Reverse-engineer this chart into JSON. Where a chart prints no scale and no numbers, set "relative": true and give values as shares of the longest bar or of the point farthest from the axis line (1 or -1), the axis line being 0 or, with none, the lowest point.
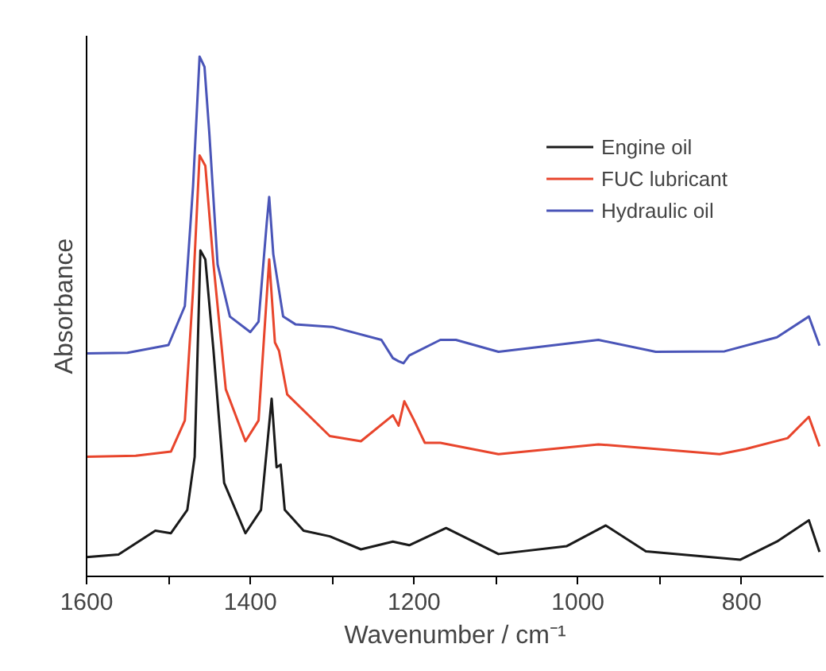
{
  "chart_data": {
    "type": "line",
    "relative": true,
    "xlabel": "Wavenumber / cm⁻¹",
    "ylabel": "Absorbance",
    "xlim": [
      1600,
      700
    ],
    "xticks": [
      1600,
      {
        "value": 1500,
        "label": null
      },
      1400,
      {
        "value": 1300,
        "label": null
      },
      1200,
      {
        "value": 1100,
        "label": null
      },
      1000,
      {
        "value": 900,
        "label": null
      },
      800
    ],
    "tick_labels": "x",
    "grid": false,
    "legend": "top right",
    "marker": "none",
    "line_style": "solid",
    "series": [
      {
        "name": "Engine oil",
        "color": "#1a1a1a",
        "x": [
          1600,
          1561,
          1516,
          1497,
          1477,
          1468,
          1461,
          1455,
          1445,
          1432,
          1406,
          1387,
          1374,
          1368,
          1363,
          1358,
          1335,
          1303,
          1265,
          1226,
          1206,
          1161,
          1097,
          1014,
          966,
          917,
          802,
          757,
          718,
          705
        ],
        "values": [
          0.037,
          0.042,
          0.088,
          0.083,
          0.128,
          0.23,
          0.627,
          0.61,
          0.434,
          0.18,
          0.083,
          0.128,
          0.342,
          0.21,
          0.215,
          0.128,
          0.088,
          0.077,
          0.052,
          0.067,
          0.06,
          0.093,
          0.043,
          0.058,
          0.098,
          0.048,
          0.032,
          0.067,
          0.108,
          0.047
        ]
      },
      {
        "name": "FUC lubricant",
        "color": "#e8452c",
        "x": [
          1600,
          1540,
          1497,
          1480,
          1470,
          1462,
          1455,
          1445,
          1430,
          1406,
          1390,
          1377,
          1370,
          1365,
          1355,
          1303,
          1265,
          1226,
          1219,
          1212,
          1200,
          1187,
          1168,
          1097,
          975,
          827,
          795,
          744,
          718,
          705
        ],
        "values": [
          0.23,
          0.232,
          0.24,
          0.3,
          0.55,
          0.81,
          0.79,
          0.6,
          0.36,
          0.26,
          0.3,
          0.61,
          0.45,
          0.434,
          0.35,
          0.27,
          0.26,
          0.31,
          0.29,
          0.337,
          0.3,
          0.257,
          0.257,
          0.235,
          0.254,
          0.235,
          0.245,
          0.266,
          0.307,
          0.25
        ]
      },
      {
        "name": "Hydraulic oil",
        "color": "#4a55b8",
        "x": [
          1600,
          1550,
          1500,
          1480,
          1470,
          1462,
          1456,
          1450,
          1440,
          1425,
          1400,
          1390,
          1380,
          1377,
          1372,
          1366,
          1360,
          1345,
          1300,
          1240,
          1226,
          1219,
          1213,
          1206,
          1168,
          1149,
          1097,
          975,
          905,
          821,
          757,
          718,
          705
        ],
        "values": [
          0.429,
          0.43,
          0.445,
          0.52,
          0.75,
          1.0,
          0.98,
          0.85,
          0.6,
          0.5,
          0.47,
          0.49,
          0.68,
          0.73,
          0.62,
          0.56,
          0.5,
          0.485,
          0.48,
          0.455,
          0.42,
          0.414,
          0.41,
          0.425,
          0.455,
          0.455,
          0.432,
          0.455,
          0.432,
          0.433,
          0.46,
          0.5,
          0.444
        ]
      }
    ]
  }
}
